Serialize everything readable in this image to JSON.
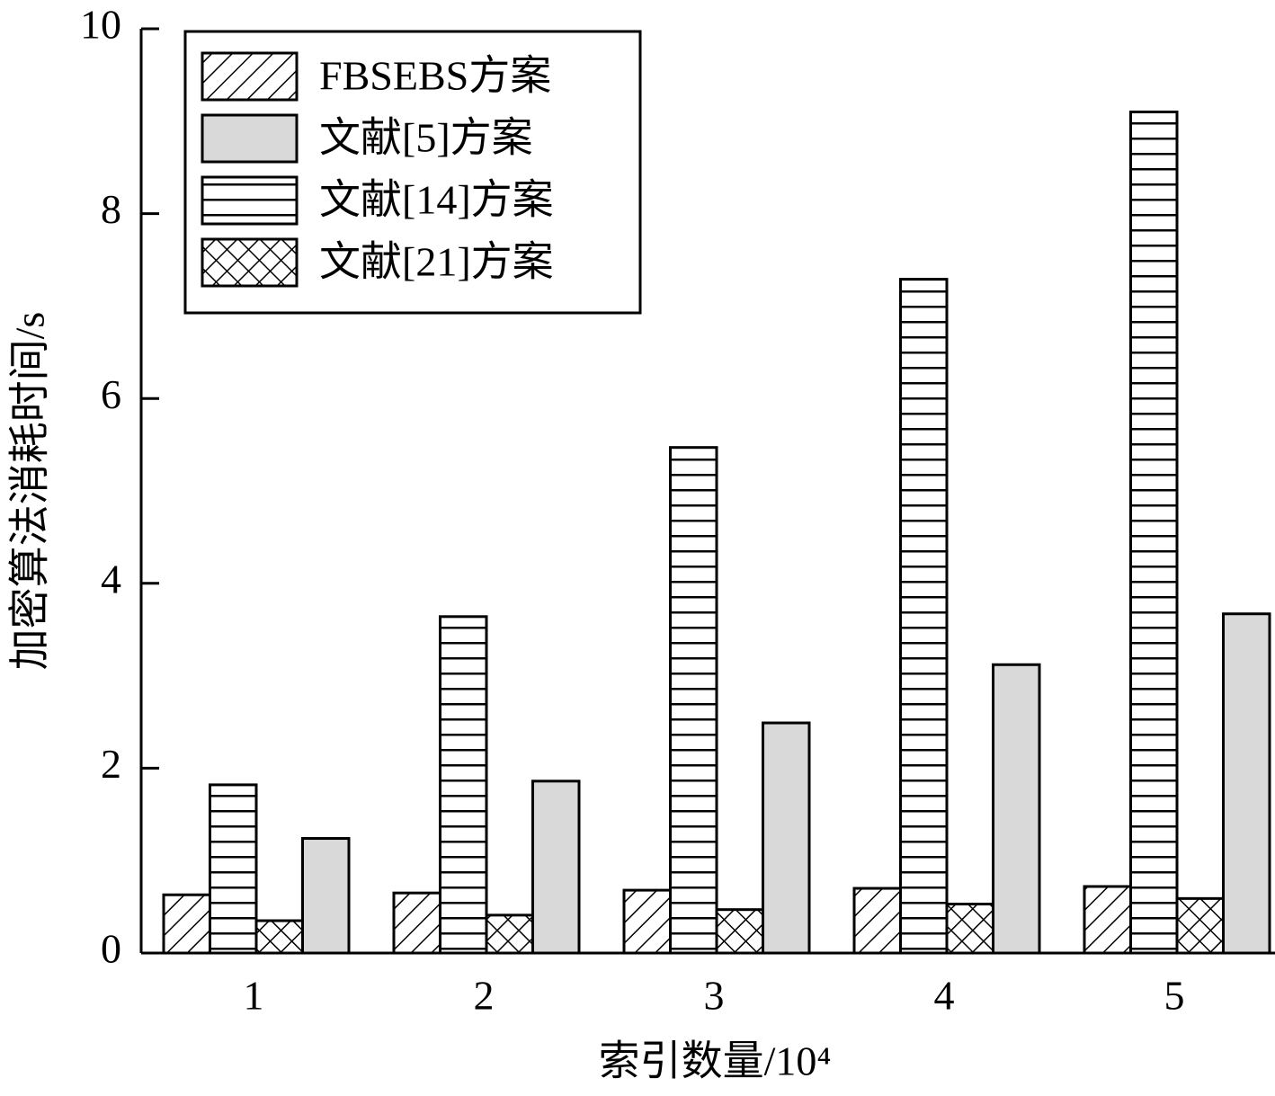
{
  "chart_data": {
    "type": "bar",
    "x_label": "索引数量/10⁴",
    "y_label": "加密算法消耗时间/s",
    "categories": [
      "1",
      "2",
      "3",
      "4",
      "5"
    ],
    "series": [
      {
        "name": "FBSEBS方案",
        "color": "#ffffff",
        "pattern": "diagonal",
        "values": [
          0.63,
          0.65,
          0.68,
          0.7,
          0.72
        ]
      },
      {
        "name": "文献[5]方案",
        "color": "#d9d9d9",
        "pattern": "none",
        "values": [
          1.24,
          1.86,
          2.49,
          3.12,
          3.67
        ]
      },
      {
        "name": "文献[14]方案",
        "color": "#ffffff",
        "pattern": "horizontal",
        "values": [
          1.82,
          3.64,
          5.47,
          7.29,
          9.1
        ]
      },
      {
        "name": "文献[21]方案",
        "color": "#ffffff",
        "pattern": "crosshatch",
        "values": [
          0.35,
          0.41,
          0.47,
          0.53,
          0.59
        ]
      }
    ],
    "ylim": [
      0,
      10
    ],
    "yticks": [
      0,
      2,
      4,
      6,
      8,
      10
    ],
    "legend": "upper left"
  }
}
